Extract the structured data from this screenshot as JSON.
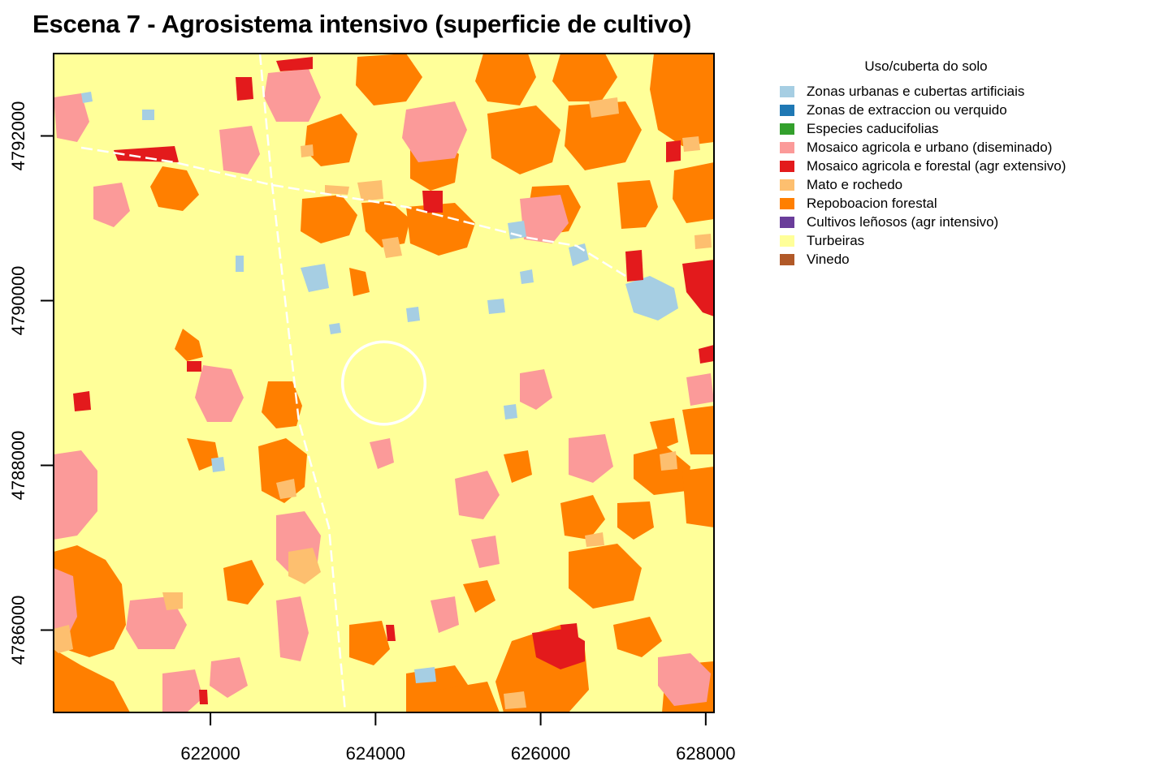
{
  "title": "Escena 7 - Agrosistema intensivo (superficie de cultivo)",
  "legend": {
    "title": "Uso/cuberta do solo",
    "items": [
      {
        "label": "Zonas urbanas e cubertas artificiais",
        "color": "#a6cee3"
      },
      {
        "label": "Zonas de extraccion ou verquido",
        "color": "#1f78b4"
      },
      {
        "label": "Especies caducifolias",
        "color": "#33a02c"
      },
      {
        "label": "Mosaico agricola e urbano (diseminado)",
        "color": "#fb9a99"
      },
      {
        "label": "Mosaico agricola e forestal (agr extensivo)",
        "color": "#e31a1c"
      },
      {
        "label": "Mato e rochedo",
        "color": "#fdbf6f"
      },
      {
        "label": "Repoboacion forestal",
        "color": "#ff7f00"
      },
      {
        "label": "Cultivos leñosos (agr intensivo)",
        "color": "#6a3d9a"
      },
      {
        "label": "Turbeiras",
        "color": "#ffff99"
      },
      {
        "label": "Vinedo",
        "color": "#b15928"
      }
    ]
  },
  "axes": {
    "x_ticks": [
      "622000",
      "624000",
      "626000",
      "628000"
    ],
    "y_ticks": [
      "4786000",
      "4788000",
      "4790000",
      "4792000"
    ]
  },
  "map": {
    "x_range": [
      620100,
      628100
    ],
    "y_range": [
      4785000,
      4793000
    ],
    "background_class": "Turbeiras",
    "circle_center": [
      624100,
      4789000
    ],
    "circle_radius_m": 500
  }
}
